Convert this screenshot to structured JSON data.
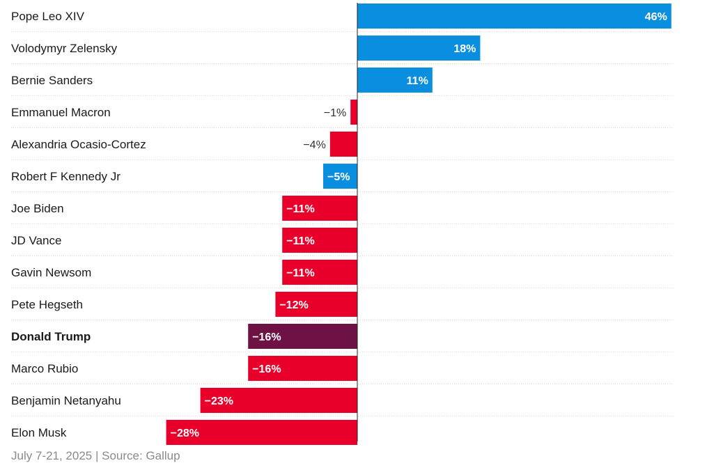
{
  "chart_data": {
    "type": "bar",
    "orientation": "horizontal",
    "categories": [
      "Pope Leo XIV",
      "Volodymyr Zelensky",
      "Bernie Sanders",
      "Emmanuel Macron",
      "Alexandria Ocasio-Cortez",
      "Robert F Kennedy Jr",
      "Joe Biden",
      "JD Vance",
      "Gavin Newsom",
      "Pete Hegseth",
      "Donald Trump",
      "Marco Rubio",
      "Benjamin Netanyahu",
      "Elon Musk"
    ],
    "values": [
      46,
      18,
      11,
      -1,
      -4,
      -5,
      -11,
      -11,
      -11,
      -12,
      -16,
      -16,
      -23,
      -28
    ],
    "value_labels": [
      "46%",
      "18%",
      "11%",
      "−1%",
      "−4%",
      "−5%",
      "−11%",
      "−11%",
      "−11%",
      "−12%",
      "−16%",
      "−16%",
      "−23%",
      "−28%"
    ],
    "bar_colors": [
      "#0a8ee0",
      "#0a8ee0",
      "#0a8ee0",
      "#e8002b",
      "#e8002b",
      "#0a8ee0",
      "#e8002b",
      "#e8002b",
      "#e8002b",
      "#e8002b",
      "#6e1245",
      "#e8002b",
      "#e8002b",
      "#e8002b"
    ],
    "highlight": "Donald Trump",
    "xlim": [
      -28,
      46
    ],
    "grid": false,
    "title": "",
    "xlabel": "",
    "ylabel": ""
  },
  "colors": {
    "positive": "#0a8ee0",
    "negative": "#e8002b",
    "highlight": "#6e1245"
  },
  "footer": {
    "source": "July 7-21, 2025 | Source: Gallup"
  }
}
